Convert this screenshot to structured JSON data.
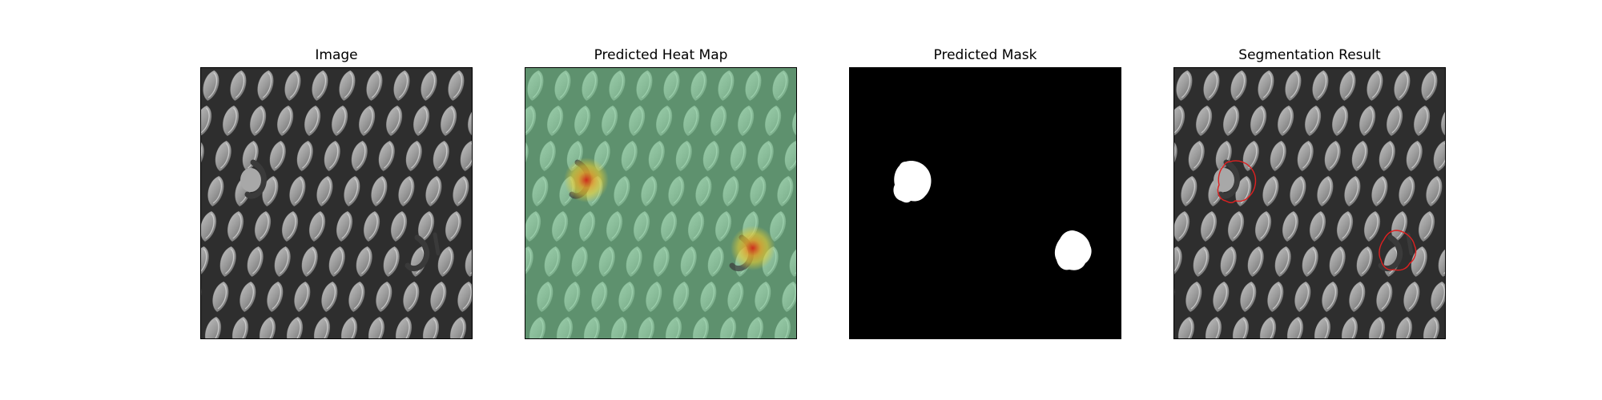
{
  "figure": {
    "panels": [
      {
        "title": "Image",
        "content": "mesh-image"
      },
      {
        "title": "Predicted Heat Map",
        "content": "heatmap"
      },
      {
        "title": "Predicted Mask",
        "content": "mask"
      },
      {
        "title": "Segmentation Result",
        "content": "segmentation"
      }
    ]
  },
  "colors": {
    "heatmap_tint": "#7fd39a",
    "heatmap_hot": "#d42a1a",
    "heatmap_warm": "#f2d12c",
    "mask_foreground": "#ffffff",
    "mask_background": "#000000",
    "contour": "#e02020"
  }
}
